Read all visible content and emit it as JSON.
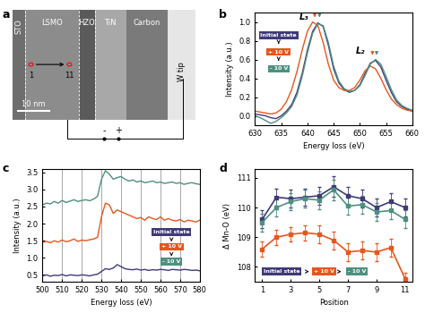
{
  "chart_data": [
    {
      "panel": "a",
      "type": "image",
      "layers": [
        "STO",
        "LSMO",
        "HZO",
        "TiN",
        "Carbon",
        "W tip"
      ],
      "points": [
        1,
        11
      ],
      "scale_bar": "10 nm",
      "terminals": [
        "-",
        "+"
      ]
    },
    {
      "panel": "b",
      "type": "line",
      "xlabel": "Energy loss (eV)",
      "ylabel": "Intensity (a.u.)",
      "xlim": [
        630,
        660
      ],
      "xticks": [
        630,
        635,
        640,
        645,
        650,
        655,
        660
      ],
      "ylim": [
        -0.1,
        1.1
      ],
      "yticks": [
        {
          "value": 0,
          "label": "0.0"
        },
        0.2,
        0.4,
        0.6,
        0.8,
        {
          "value": 1,
          "label": "1.0"
        }
      ],
      "annotations": [
        {
          "text": "L₃",
          "x": 640.3,
          "y": 1.0
        },
        {
          "text": "L₂",
          "x": 651.0,
          "y": 0.64
        }
      ],
      "peak_arrows": [
        {
          "x": 641.4,
          "y": 1.0,
          "color": "#e8561c"
        },
        {
          "x": 642.3,
          "y": 1.0,
          "color": "#4e9080"
        },
        {
          "x": 652.4,
          "y": 0.6,
          "color": "#e8561c"
        },
        {
          "x": 653.2,
          "y": 0.6,
          "color": "#4e9080"
        }
      ],
      "x": [
        630,
        631,
        632,
        633,
        634,
        635,
        636,
        637,
        638,
        639,
        640,
        641,
        642,
        643,
        644,
        645,
        646,
        647,
        648,
        649,
        650,
        651,
        652,
        653,
        654,
        655,
        656,
        657,
        658,
        659,
        660
      ],
      "series": [
        {
          "name": "Initial state",
          "color": "#3f3a78",
          "values": [
            0.02,
            0.01,
            0.0,
            -0.02,
            -0.03,
            0.0,
            0.05,
            0.12,
            0.25,
            0.45,
            0.7,
            0.9,
            0.99,
            0.95,
            0.75,
            0.5,
            0.35,
            0.28,
            0.25,
            0.27,
            0.33,
            0.45,
            0.56,
            0.59,
            0.52,
            0.38,
            0.25,
            0.15,
            0.1,
            0.07,
            0.05
          ]
        },
        {
          "name": "+ 10 V",
          "color": "#e8561c",
          "values": [
            0.05,
            0.04,
            0.03,
            0.02,
            0.03,
            0.07,
            0.15,
            0.28,
            0.47,
            0.7,
            0.9,
            1.0,
            0.96,
            0.78,
            0.55,
            0.38,
            0.3,
            0.27,
            0.27,
            0.3,
            0.38,
            0.48,
            0.53,
            0.5,
            0.4,
            0.28,
            0.18,
            0.12,
            0.08,
            0.06,
            0.05
          ]
        },
        {
          "name": "- 10 V",
          "color": "#4e9080",
          "values": [
            0.0,
            -0.02,
            -0.05,
            -0.08,
            -0.06,
            -0.02,
            0.03,
            0.1,
            0.22,
            0.42,
            0.67,
            0.88,
            0.98,
            0.96,
            0.78,
            0.53,
            0.37,
            0.29,
            0.26,
            0.27,
            0.32,
            0.43,
            0.55,
            0.6,
            0.55,
            0.42,
            0.28,
            0.17,
            0.11,
            0.08,
            0.06
          ]
        }
      ]
    },
    {
      "panel": "c",
      "type": "line",
      "grid": "x",
      "xlabel": "Energy loss (eV)",
      "ylabel": "Intensity (a.u.)",
      "xlim": [
        500,
        580
      ],
      "xticks": [
        500,
        510,
        520,
        530,
        540,
        550,
        560,
        570,
        580
      ],
      "ylim": [
        0.3,
        3.6
      ],
      "yticks": [
        0.5,
        {
          "value": 1,
          "label": "1.0"
        },
        1.5,
        {
          "value": 2,
          "label": "2.0"
        },
        2.5,
        {
          "value": 3,
          "label": "3.0"
        },
        3.5
      ],
      "x": [
        500,
        502,
        504,
        506,
        508,
        510,
        512,
        514,
        516,
        518,
        520,
        522,
        524,
        526,
        528,
        530,
        532,
        534,
        536,
        538,
        540,
        542,
        544,
        546,
        548,
        550,
        552,
        554,
        556,
        558,
        560,
        562,
        564,
        566,
        568,
        570,
        572,
        574,
        576,
        578,
        580
      ],
      "series": [
        {
          "name": "Initial state",
          "color": "#3f3a78",
          "values": [
            0.47,
            0.5,
            0.46,
            0.49,
            0.48,
            0.51,
            0.47,
            0.5,
            0.49,
            0.48,
            0.5,
            0.49,
            0.47,
            0.5,
            0.52,
            0.6,
            0.68,
            0.66,
            0.7,
            0.8,
            0.74,
            0.68,
            0.66,
            0.65,
            0.67,
            0.64,
            0.66,
            0.63,
            0.65,
            0.64,
            0.66,
            0.65,
            0.63,
            0.66,
            0.65,
            0.64,
            0.66,
            0.65,
            0.63,
            0.64,
            0.62
          ]
        },
        {
          "name": "+ 10 V",
          "color": "#e8561c",
          "values": [
            1.45,
            1.48,
            1.44,
            1.5,
            1.46,
            1.52,
            1.47,
            1.5,
            1.55,
            1.48,
            1.52,
            1.5,
            1.53,
            1.55,
            1.6,
            2.2,
            2.6,
            2.55,
            2.3,
            2.4,
            2.35,
            2.3,
            2.25,
            2.2,
            2.15,
            2.18,
            2.1,
            2.2,
            2.15,
            2.12,
            2.2,
            2.1,
            2.15,
            2.1,
            2.08,
            2.12,
            2.05,
            2.1,
            2.08,
            2.05,
            2.1
          ]
        },
        {
          "name": "- 10 V",
          "color": "#4e9080",
          "values": [
            2.55,
            2.6,
            2.58,
            2.65,
            2.6,
            2.68,
            2.62,
            2.66,
            2.7,
            2.65,
            2.68,
            2.7,
            2.67,
            2.72,
            2.8,
            3.3,
            3.55,
            3.45,
            3.3,
            3.35,
            3.38,
            3.3,
            3.25,
            3.28,
            3.22,
            3.25,
            3.2,
            3.22,
            3.25,
            3.2,
            3.22,
            3.18,
            3.2,
            3.22,
            3.18,
            3.2,
            3.15,
            3.18,
            3.2,
            3.17,
            3.15
          ]
        }
      ]
    },
    {
      "panel": "d",
      "type": "line",
      "marker": "square",
      "xlabel": "Position",
      "ylabel": "Δ Mn-O (eV)",
      "xlim": [
        0.5,
        11.5
      ],
      "xticks": [
        1,
        3,
        5,
        7,
        9,
        11
      ],
      "ylim": [
        107.5,
        111.3
      ],
      "yticks": [
        108,
        109,
        110,
        111
      ],
      "x": [
        1,
        2,
        3,
        4,
        5,
        6,
        7,
        8,
        9,
        10,
        11
      ],
      "series": [
        {
          "name": "Initial state",
          "color": "#3f3a78",
          "values": [
            109.6,
            110.35,
            110.3,
            110.35,
            110.4,
            110.7,
            110.4,
            110.3,
            110.0,
            110.2,
            110.0
          ],
          "errors": [
            0.3,
            0.3,
            0.3,
            0.3,
            0.3,
            0.35,
            0.3,
            0.3,
            0.3,
            0.3,
            0.3
          ]
        },
        {
          "name": "+ 10 V",
          "color": "#e8561c",
          "values": [
            108.6,
            109.0,
            109.1,
            109.15,
            109.1,
            108.9,
            108.5,
            108.55,
            108.5,
            108.65,
            107.6
          ],
          "errors": [
            0.25,
            0.25,
            0.25,
            0.25,
            0.3,
            0.3,
            0.3,
            0.3,
            0.3,
            0.3,
            0.2
          ]
        },
        {
          "name": "- 10 V",
          "color": "#4e9080",
          "values": [
            109.5,
            110.0,
            110.2,
            110.3,
            110.25,
            110.6,
            110.05,
            110.1,
            109.85,
            109.9,
            109.6
          ],
          "errors": [
            0.3,
            0.3,
            0.3,
            0.3,
            0.3,
            0.35,
            0.3,
            0.3,
            0.3,
            0.3,
            0.3
          ]
        }
      ]
    }
  ]
}
